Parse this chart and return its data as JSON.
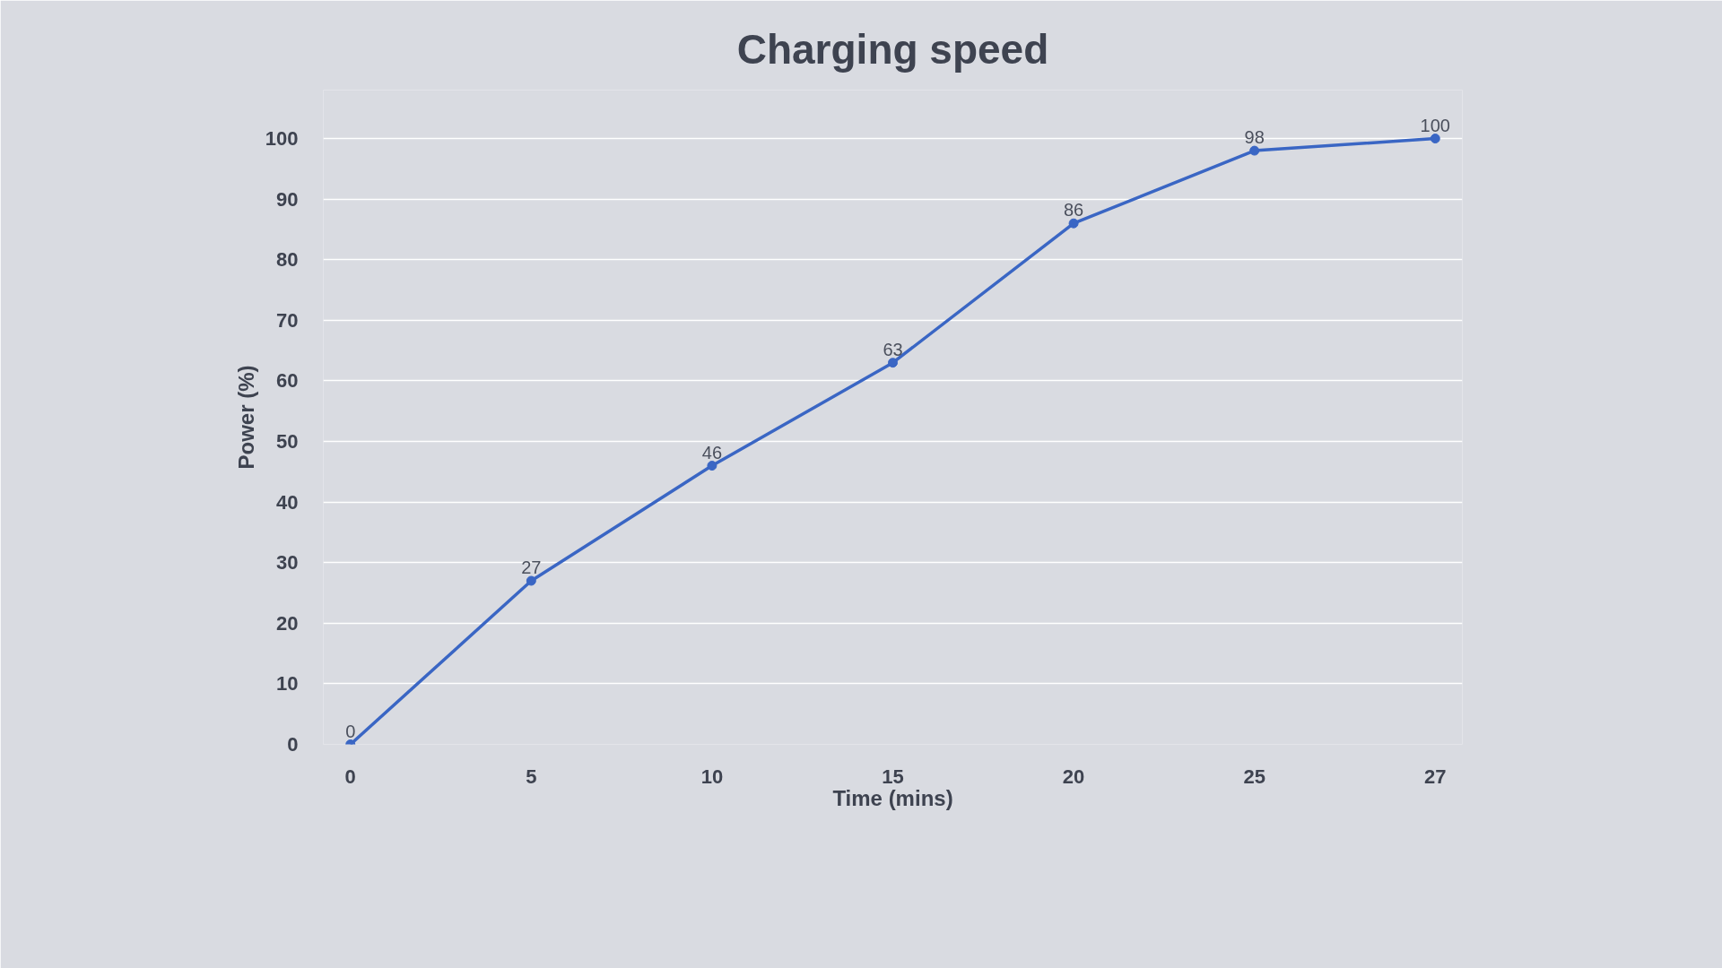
{
  "chart_data": {
    "type": "line",
    "title": "Charging speed",
    "xlabel": "Time (mins)",
    "ylabel": "Power (%)",
    "categories": [
      "0",
      "5",
      "10",
      "15",
      "20",
      "25",
      "27"
    ],
    "series": [
      {
        "color": "#3a66c4",
        "values": [
          0,
          27,
          46,
          63,
          86,
          98,
          100
        ]
      }
    ],
    "ylim": [
      0,
      100
    ],
    "yticks": [
      0,
      10,
      20,
      30,
      40,
      50,
      60,
      70,
      80,
      90,
      100
    ],
    "grid": "y",
    "data_labels": true,
    "marker": "circle",
    "line_style": "solid"
  }
}
